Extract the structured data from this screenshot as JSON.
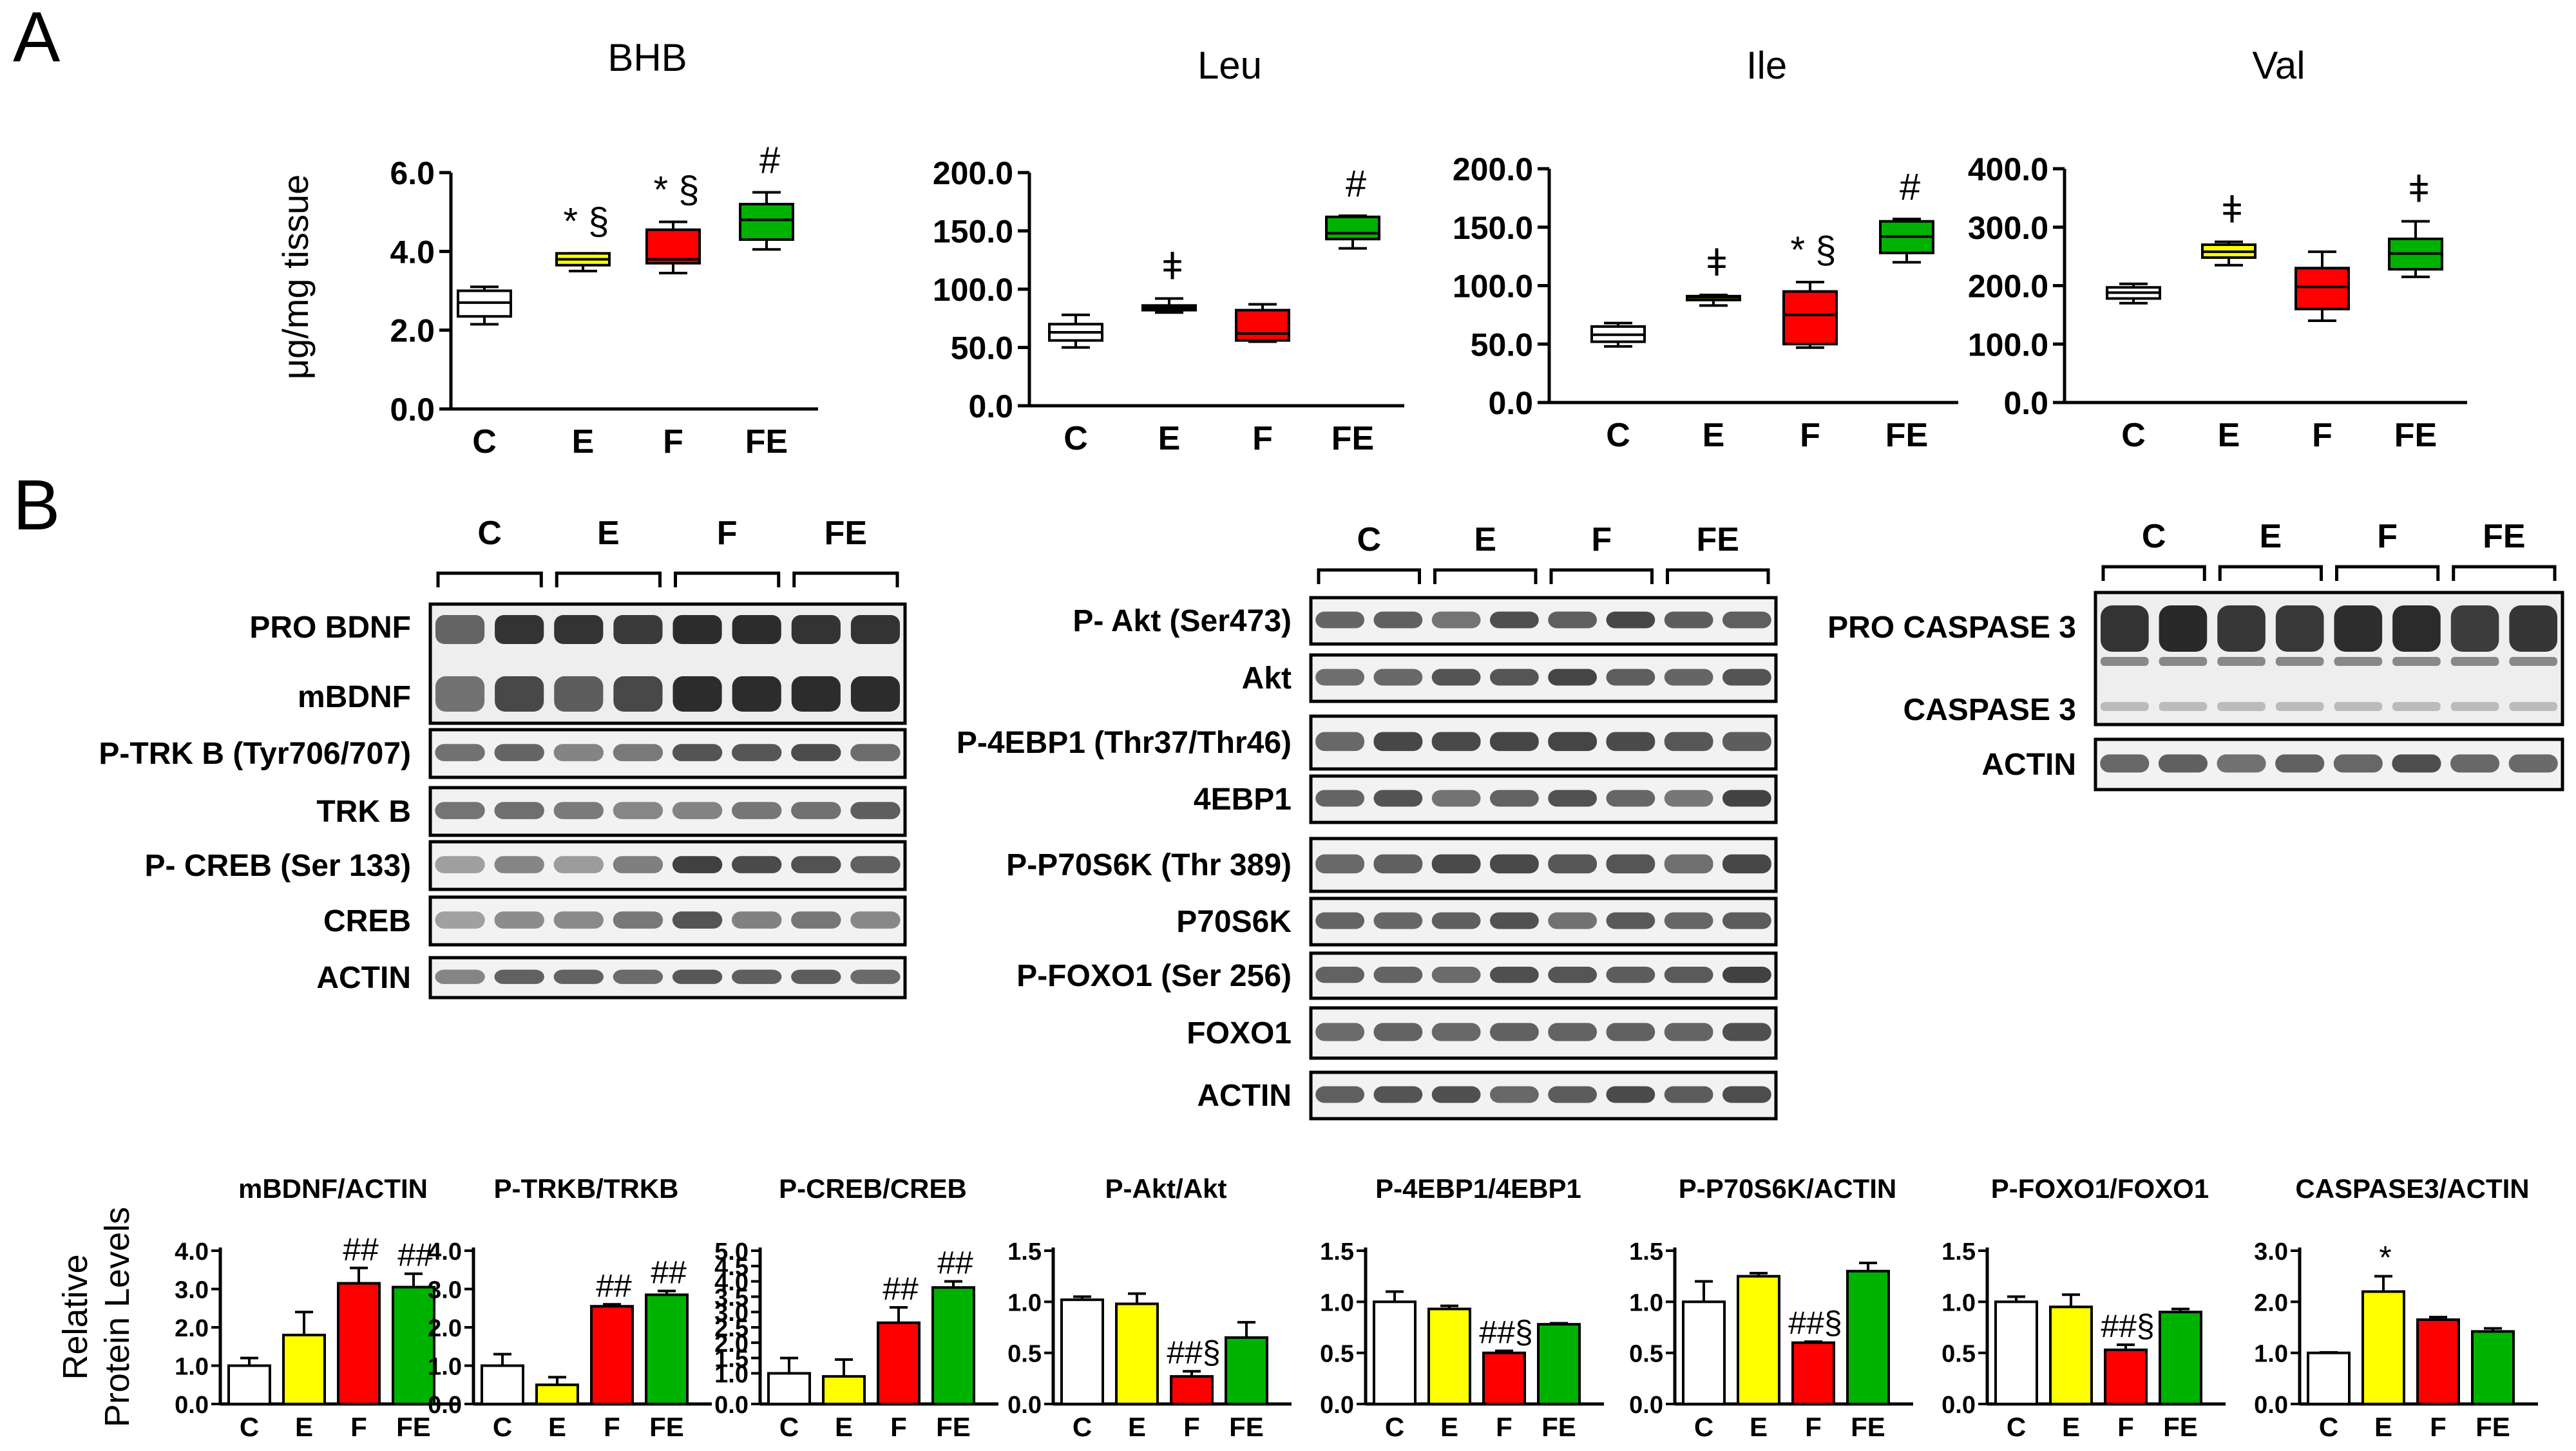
{
  "panels": {
    "a": "A",
    "b": "B"
  },
  "colors": {
    "C": "#ffffff",
    "E": "#ffff00",
    "F": "#ff0000",
    "FE": "#00b200",
    "stroke": "#000000"
  },
  "boxplots": {
    "ylabel": "μg/mg tissue",
    "charts": [
      {
        "title": "BHB",
        "type": "box",
        "yticks": [
          "0.0",
          "2.0",
          "4.0",
          "6.0"
        ],
        "ylim": [
          0,
          6
        ],
        "categories": [
          "C",
          "E",
          "F",
          "FE"
        ],
        "boxes": [
          {
            "min": 2.15,
            "q1": 2.35,
            "med": 2.7,
            "q3": 3.0,
            "max": 3.1
          },
          {
            "min": 3.5,
            "q1": 3.65,
            "med": 3.8,
            "q3": 3.95,
            "max": 3.95
          },
          {
            "min": 3.45,
            "q1": 3.7,
            "med": 3.8,
            "q3": 4.55,
            "max": 4.75
          },
          {
            "min": 4.05,
            "q1": 4.3,
            "med": 4.8,
            "q3": 5.2,
            "max": 5.5
          }
        ],
        "marks": [
          "",
          "* §",
          "* §",
          "#"
        ]
      },
      {
        "title": "Leu",
        "type": "box",
        "yticks": [
          "0.0",
          "50.0",
          "100.0",
          "150.0",
          "200.0"
        ],
        "ylim": [
          0,
          200
        ],
        "categories": [
          "C",
          "E",
          "F",
          "FE"
        ],
        "boxes": [
          {
            "min": 50,
            "q1": 56,
            "med": 63,
            "q3": 70,
            "max": 78
          },
          {
            "min": 80,
            "q1": 82,
            "med": 84,
            "q3": 86,
            "max": 92
          },
          {
            "min": 55,
            "q1": 56,
            "med": 62,
            "q3": 82,
            "max": 87
          },
          {
            "min": 135,
            "q1": 143,
            "med": 148,
            "q3": 162,
            "max": 163
          }
        ],
        "marks": [
          "",
          "ǂ",
          "",
          "#"
        ]
      },
      {
        "title": "Ile",
        "type": "box",
        "yticks": [
          "0.0",
          "50.0",
          "100.0",
          "150.0",
          "200.0"
        ],
        "ylim": [
          0,
          200
        ],
        "categories": [
          "C",
          "E",
          "F",
          "FE"
        ],
        "boxes": [
          {
            "min": 48,
            "q1": 52,
            "med": 58,
            "q3": 65,
            "max": 68
          },
          {
            "min": 83,
            "q1": 88,
            "med": 90,
            "q3": 91,
            "max": 92
          },
          {
            "min": 47,
            "q1": 50,
            "med": 75,
            "q3": 95,
            "max": 103
          },
          {
            "min": 120,
            "q1": 128,
            "med": 142,
            "q3": 155,
            "max": 157
          }
        ],
        "marks": [
          "",
          "ǂ",
          "* §",
          "#"
        ]
      },
      {
        "title": "Val",
        "type": "box",
        "yticks": [
          "0.0",
          "100.0",
          "200.0",
          "300.0",
          "400.0"
        ],
        "ylim": [
          0,
          400
        ],
        "categories": [
          "C",
          "E",
          "F",
          "FE"
        ],
        "boxes": [
          {
            "min": 170,
            "q1": 178,
            "med": 188,
            "q3": 197,
            "max": 203
          },
          {
            "min": 235,
            "q1": 248,
            "med": 258,
            "q3": 270,
            "max": 275
          },
          {
            "min": 140,
            "q1": 160,
            "med": 198,
            "q3": 230,
            "max": 258
          },
          {
            "min": 215,
            "q1": 228,
            "med": 255,
            "q3": 280,
            "max": 310
          }
        ],
        "marks": [
          "",
          "ǂ",
          "",
          "ǂ"
        ]
      }
    ]
  },
  "blots": {
    "groups": [
      "C",
      "E",
      "F",
      "FE"
    ],
    "left": {
      "labels": [
        "PRO BDNF",
        "mBDNF",
        "P-TRK B (Tyr706/707)",
        "TRK B",
        "P- CREB (Ser 133)",
        "CREB",
        "ACTIN"
      ]
    },
    "middle": {
      "labels": [
        "P- Akt (Ser473)",
        "Akt",
        "P-4EBP1 (Thr37/Thr46)",
        "4EBP1",
        "P-P70S6K (Thr 389)",
        "P70S6K",
        "P-FOXO1 (Ser 256)",
        "FOXO1",
        "ACTIN"
      ]
    },
    "right": {
      "labels": [
        "PRO CASPASE 3",
        "CASPASE 3",
        "ACTIN"
      ]
    }
  },
  "barcharts": {
    "ylabel_line1": "Relative",
    "ylabel_line2": "Protein  Levels",
    "charts": [
      {
        "title": "mBDNF/ACTIN",
        "type": "bar",
        "yticks": [
          "0.0",
          "1.0",
          "2.0",
          "3.0",
          "4.0"
        ],
        "ylim": [
          0,
          4
        ],
        "categories": [
          "C",
          "E",
          "F",
          "FE"
        ],
        "values": [
          1.0,
          1.8,
          3.15,
          3.05
        ],
        "errors": [
          0.2,
          0.6,
          0.4,
          0.35
        ],
        "marks": [
          "",
          "",
          "##",
          "##"
        ]
      },
      {
        "title": "P-TRKB/TRKB",
        "type": "bar",
        "yticks": [
          "0.0",
          "1.0",
          "2.0",
          "3.0",
          "4.0"
        ],
        "ylim": [
          0,
          4
        ],
        "categories": [
          "C",
          "E",
          "F",
          "FE"
        ],
        "values": [
          1.0,
          0.5,
          2.55,
          2.85
        ],
        "errors": [
          0.3,
          0.2,
          0.05,
          0.1
        ],
        "marks": [
          "",
          "",
          "##",
          "##"
        ]
      },
      {
        "title": "P-CREB/CREB",
        "type": "bar",
        "yticks": [
          "0.0",
          "1.0",
          "1.5",
          "2.0",
          "2.5",
          "3.0",
          "3.5",
          "4.0",
          "4.5",
          "5.0"
        ],
        "ylim": [
          0,
          5
        ],
        "categories": [
          "C",
          "E",
          "F",
          "FE"
        ],
        "values": [
          1.0,
          0.9,
          2.65,
          3.8
        ],
        "errors": [
          0.5,
          0.55,
          0.5,
          0.2
        ],
        "marks": [
          "",
          "",
          "##",
          "##"
        ]
      },
      {
        "title": "P-Akt/Akt",
        "type": "bar",
        "yticks": [
          "0.0",
          "0.5",
          "1.0",
          "1.5"
        ],
        "ylim": [
          0,
          1.5
        ],
        "categories": [
          "C",
          "E",
          "F",
          "FE"
        ],
        "values": [
          1.02,
          0.98,
          0.27,
          0.65
        ],
        "errors": [
          0.03,
          0.1,
          0.05,
          0.15
        ],
        "marks": [
          "",
          "",
          "##§",
          ""
        ]
      },
      {
        "title": "P-4EBP1/4EBP1",
        "type": "bar",
        "yticks": [
          "0.0",
          "0.5",
          "1.0",
          "1.5"
        ],
        "ylim": [
          0,
          1.5
        ],
        "categories": [
          "C",
          "E",
          "F",
          "FE"
        ],
        "values": [
          1.0,
          0.93,
          0.5,
          0.78
        ],
        "errors": [
          0.1,
          0.03,
          0.02,
          0.01
        ],
        "marks": [
          "",
          "",
          "##§",
          ""
        ]
      },
      {
        "title": "P-P70S6K/ACTIN",
        "type": "bar",
        "yticks": [
          "0.0",
          "0.5",
          "1.0",
          "1.5"
        ],
        "ylim": [
          0,
          1.5
        ],
        "categories": [
          "C",
          "E",
          "F",
          "FE"
        ],
        "values": [
          1.0,
          1.25,
          0.6,
          1.3
        ],
        "errors": [
          0.2,
          0.03,
          0.01,
          0.08
        ],
        "marks": [
          "",
          "",
          "##§",
          ""
        ]
      },
      {
        "title": "P-FOXO1/FOXO1",
        "type": "bar",
        "yticks": [
          "0.0",
          "0.5",
          "1.0",
          "1.5"
        ],
        "ylim": [
          0,
          1.5
        ],
        "categories": [
          "C",
          "E",
          "F",
          "FE"
        ],
        "values": [
          1.0,
          0.95,
          0.53,
          0.9
        ],
        "errors": [
          0.05,
          0.12,
          0.05,
          0.03
        ],
        "marks": [
          "",
          "",
          "##§",
          ""
        ]
      },
      {
        "title": "CASPASE3/ACTIN",
        "type": "bar",
        "yticks": [
          "0.0",
          "1.0",
          "2.0",
          "3.0"
        ],
        "ylim": [
          0,
          3
        ],
        "categories": [
          "C",
          "E",
          "F",
          "FE"
        ],
        "values": [
          1.0,
          2.2,
          1.65,
          1.42
        ],
        "errors": [
          0.01,
          0.3,
          0.05,
          0.06
        ],
        "marks": [
          "",
          "*",
          "",
          ""
        ]
      }
    ]
  },
  "chart_data": [
    {
      "type": "box",
      "title": "BHB",
      "ylabel": "μg/mg tissue",
      "categories": [
        "C",
        "E",
        "F",
        "FE"
      ],
      "ylim": [
        0,
        6
      ],
      "series": [
        {
          "name": "",
          "min": [
            2.15,
            3.5,
            3.45,
            4.05
          ],
          "q1": [
            2.35,
            3.65,
            3.7,
            4.3
          ],
          "median": [
            2.7,
            3.8,
            3.8,
            4.8
          ],
          "q3": [
            3.0,
            3.95,
            4.55,
            5.2
          ],
          "max": [
            3.1,
            3.95,
            4.75,
            5.5
          ]
        }
      ]
    },
    {
      "type": "box",
      "title": "Leu",
      "categories": [
        "C",
        "E",
        "F",
        "FE"
      ],
      "ylim": [
        0,
        200
      ],
      "series": [
        {
          "name": "",
          "median": [
            63,
            84,
            62,
            148
          ]
        }
      ]
    },
    {
      "type": "box",
      "title": "Ile",
      "categories": [
        "C",
        "E",
        "F",
        "FE"
      ],
      "ylim": [
        0,
        200
      ],
      "series": [
        {
          "name": "",
          "median": [
            58,
            90,
            75,
            142
          ]
        }
      ]
    },
    {
      "type": "box",
      "title": "Val",
      "categories": [
        "C",
        "E",
        "F",
        "FE"
      ],
      "ylim": [
        0,
        400
      ],
      "series": [
        {
          "name": "",
          "median": [
            188,
            258,
            198,
            255
          ]
        }
      ]
    },
    {
      "type": "bar",
      "title": "mBDNF/ACTIN",
      "ylabel": "Relative Protein Levels",
      "categories": [
        "C",
        "E",
        "F",
        "FE"
      ],
      "values": [
        1.0,
        1.8,
        3.15,
        3.05
      ],
      "ylim": [
        0,
        4
      ]
    },
    {
      "type": "bar",
      "title": "P-TRKB/TRKB",
      "categories": [
        "C",
        "E",
        "F",
        "FE"
      ],
      "values": [
        1.0,
        0.5,
        2.55,
        2.85
      ],
      "ylim": [
        0,
        4
      ]
    },
    {
      "type": "bar",
      "title": "P-CREB/CREB",
      "categories": [
        "C",
        "E",
        "F",
        "FE"
      ],
      "values": [
        1.0,
        0.9,
        2.65,
        3.8
      ],
      "ylim": [
        0,
        5
      ]
    },
    {
      "type": "bar",
      "title": "P-Akt/Akt",
      "categories": [
        "C",
        "E",
        "F",
        "FE"
      ],
      "values": [
        1.02,
        0.98,
        0.27,
        0.65
      ],
      "ylim": [
        0,
        1.5
      ]
    },
    {
      "type": "bar",
      "title": "P-4EBP1/4EBP1",
      "categories": [
        "C",
        "E",
        "F",
        "FE"
      ],
      "values": [
        1.0,
        0.93,
        0.5,
        0.78
      ],
      "ylim": [
        0,
        1.5
      ]
    },
    {
      "type": "bar",
      "title": "P-P70S6K/ACTIN",
      "categories": [
        "C",
        "E",
        "F",
        "FE"
      ],
      "values": [
        1.0,
        1.25,
        0.6,
        1.3
      ],
      "ylim": [
        0,
        1.5
      ]
    },
    {
      "type": "bar",
      "title": "P-FOXO1/FOXO1",
      "categories": [
        "C",
        "E",
        "F",
        "FE"
      ],
      "values": [
        1.0,
        0.95,
        0.53,
        0.9
      ],
      "ylim": [
        0,
        1.5
      ]
    },
    {
      "type": "bar",
      "title": "CASPASE3/ACTIN",
      "categories": [
        "C",
        "E",
        "F",
        "FE"
      ],
      "values": [
        1.0,
        2.2,
        1.65,
        1.42
      ],
      "ylim": [
        0,
        3
      ]
    }
  ]
}
